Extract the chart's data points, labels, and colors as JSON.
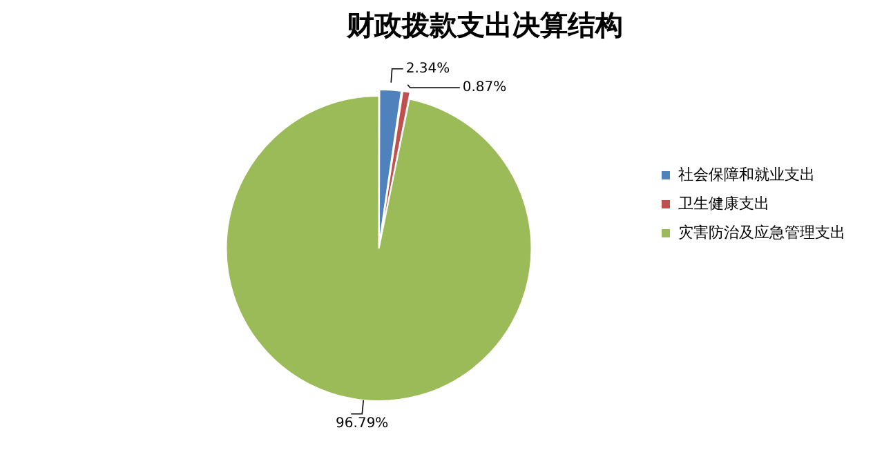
{
  "chart_data": {
    "type": "pie",
    "title": "财政拨款支出决算结构",
    "categories": [
      "社会保障和就业支出",
      "卫生健康支出",
      "灾害防治及应急管理支出"
    ],
    "values": [
      2.34,
      0.87,
      96.79
    ],
    "colors": [
      "#4f81bd",
      "#c0504d",
      "#9bbb59"
    ],
    "value_labels": [
      "2.34%",
      "0.87%",
      "96.79%"
    ],
    "legend": "right"
  }
}
